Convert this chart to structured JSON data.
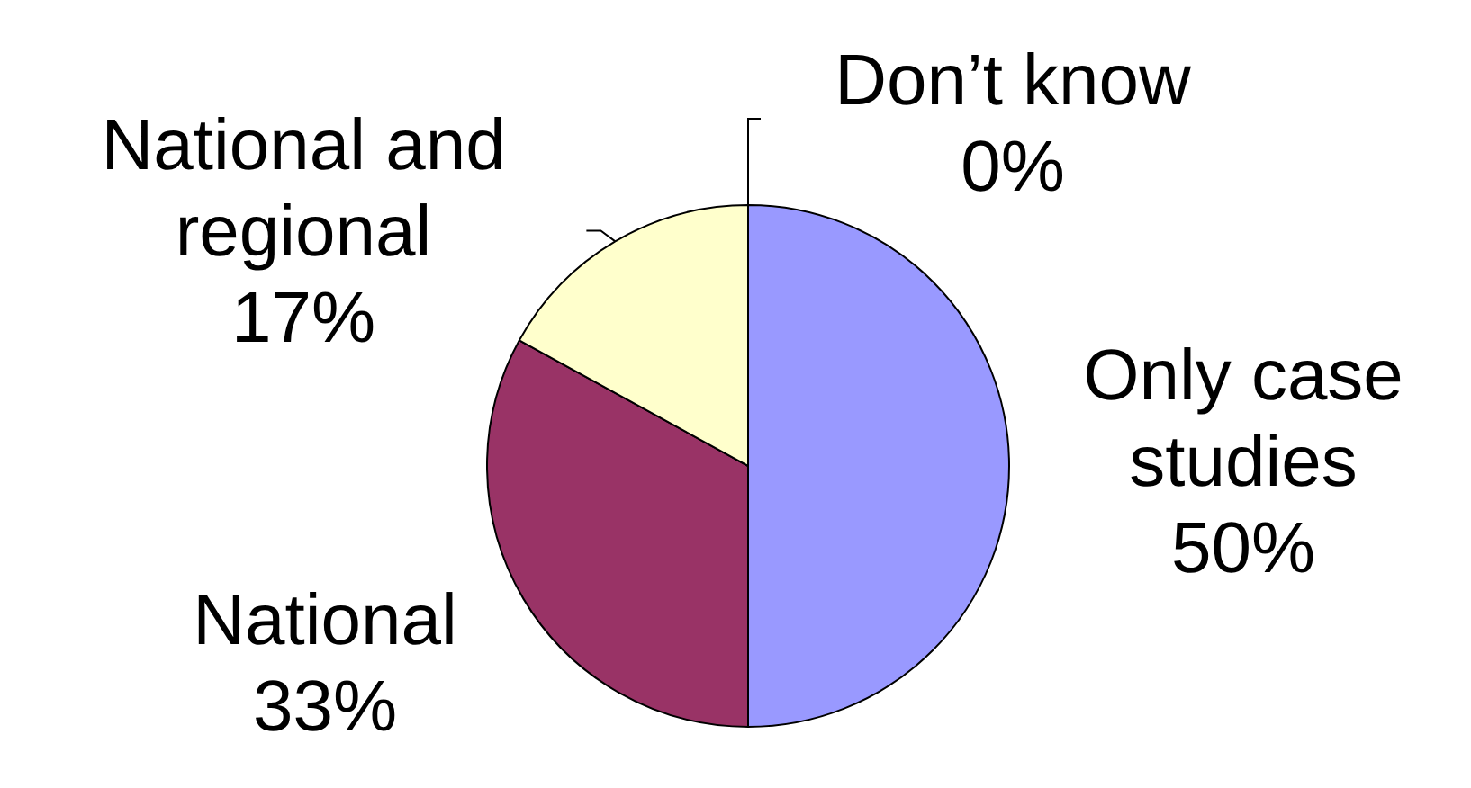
{
  "chart_data": {
    "type": "pie",
    "categories": [
      "Only case studies",
      "National",
      "National and regional",
      "Don’t know"
    ],
    "values": [
      50,
      33,
      17,
      0
    ],
    "value_labels": [
      "50%",
      "33%",
      "17%",
      "0%"
    ],
    "colors": [
      "#9999ff",
      "#993366",
      "#ffffcc",
      "#ffffff"
    ]
  }
}
